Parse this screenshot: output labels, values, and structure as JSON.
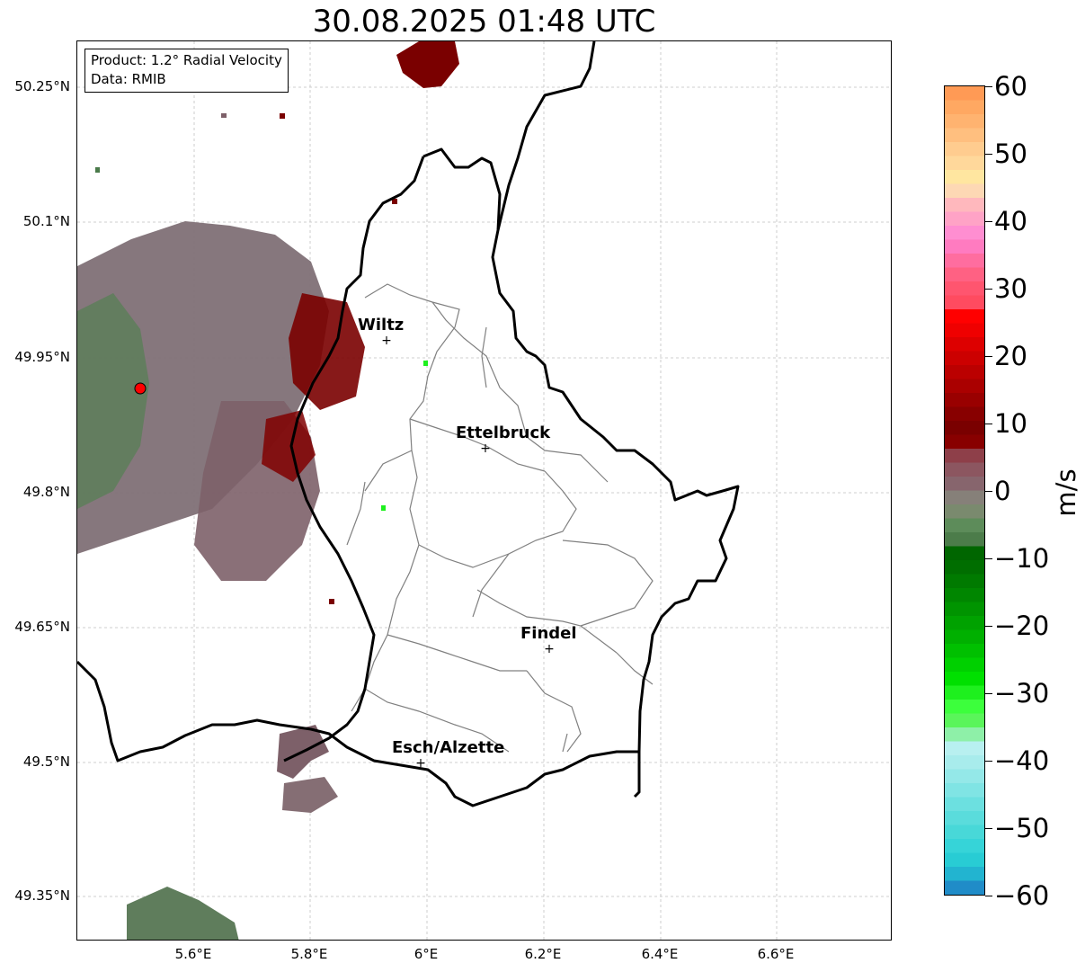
{
  "title": "30.08.2025 01:48 UTC",
  "product_box": {
    "product": "Product: 1.2° Radial Velocity",
    "data": "Data: RMIB"
  },
  "map": {
    "lat_ticks": [
      "50.25°N",
      "50.1°N",
      "49.95°N",
      "49.8°N",
      "49.65°N",
      "49.5°N",
      "49.35°N"
    ],
    "lon_ticks": [
      "5.6°E",
      "5.8°E",
      "6°E",
      "6.2°E",
      "6.4°E",
      "6.6°E"
    ],
    "cities": [
      {
        "name": "Wiltz"
      },
      {
        "name": "Ettelbruck"
      },
      {
        "name": "Findel"
      },
      {
        "name": "Esch/Alzette"
      }
    ],
    "radar_marker_color": "#ff0000",
    "border_color": "#000000",
    "canton_color": "#808080",
    "grid_color": "#c0c0c0"
  },
  "colorbar": {
    "unit": "m/s",
    "min": -60,
    "max": 60,
    "tick_labels": [
      "60",
      "50",
      "40",
      "30",
      "20",
      "10",
      "0",
      "−10",
      "−20",
      "−30",
      "−40",
      "−50",
      "−60"
    ],
    "colors_top_to_bottom": [
      "#ff9a55",
      "#ffa862",
      "#ffb370",
      "#ffbf7f",
      "#ffcc8f",
      "#ffd89b",
      "#ffe6a0",
      "#fdd8b4",
      "#ffb8bd",
      "#ffa3c6",
      "#ff8ed1",
      "#ff7bc0",
      "#ff6d9f",
      "#ff6183",
      "#ff556f",
      "#ff4b60",
      "#ff0000",
      "#ef0000",
      "#dd0000",
      "#cc0000",
      "#bb0000",
      "#aa0000",
      "#990000",
      "#880000",
      "#7a0000",
      "#880000",
      "#8e3f49",
      "#8c5660",
      "#87656d",
      "#868079",
      "#7a8a6e",
      "#5d8c5a",
      "#4c7c4a",
      "#006600",
      "#006e00",
      "#007a00",
      "#008600",
      "#009400",
      "#00a200",
      "#00b000",
      "#00c000",
      "#00d000",
      "#00e000",
      "#1ef01e",
      "#3cff3c",
      "#5af55a",
      "#8ef0a8",
      "#b8f0f0",
      "#a8ecec",
      "#94e8e8",
      "#80e4e4",
      "#6ce0e0",
      "#5adcdc",
      "#48d8d8",
      "#36d4d8",
      "#28ccd4",
      "#22b4d0",
      "#208cc8"
    ]
  }
}
